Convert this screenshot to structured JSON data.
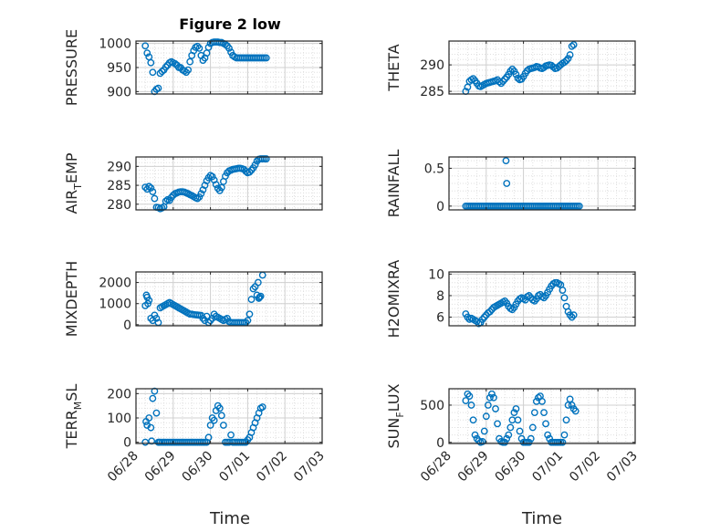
{
  "figure": {
    "title": "Figure 2 low"
  },
  "style": {
    "marker_color": "#0072bd",
    "axes_color": "#262626",
    "grid_color": "#dfdfdf"
  },
  "x_axis": {
    "label": "Time",
    "ticks": [
      "06/28",
      "06/29",
      "06/30",
      "07/01",
      "07/02",
      "07/03"
    ]
  },
  "chart_data": [
    {
      "type": "scatter",
      "title": "Figure 2 low",
      "ylabel_main": "PRESSURE",
      "ylabel_sub": "",
      "ylim": [
        895,
        1005
      ],
      "yticks": [
        900,
        950,
        1000
      ],
      "ytick_labels": [
        "900",
        "950",
        "1000"
      ],
      "grid": true,
      "minor_grid": true,
      "x": [
        0.25,
        0.3,
        0.35,
        0.4,
        0.45,
        0.5,
        0.55,
        0.6,
        0.65,
        0.7,
        0.75,
        0.8,
        0.85,
        0.9,
        0.95,
        1.0,
        1.05,
        1.1,
        1.15,
        1.2,
        1.25,
        1.3,
        1.35,
        1.4,
        1.45,
        1.5,
        1.55,
        1.6,
        1.65,
        1.7,
        1.75,
        1.8,
        1.85,
        1.9,
        1.95,
        2.0,
        2.05,
        2.1,
        2.15,
        2.2,
        2.25,
        2.3,
        2.35,
        2.4,
        2.45,
        2.5,
        2.55,
        2.6,
        2.65,
        2.7,
        2.75,
        2.8,
        2.85,
        2.9,
        2.95,
        3.0,
        3.05,
        3.1,
        3.15,
        3.2,
        3.25,
        3.3,
        3.35,
        3.4,
        3.45,
        3.5
      ],
      "y": [
        995,
        980,
        972,
        960,
        940,
        900,
        905,
        907,
        938,
        942,
        945,
        951,
        955,
        960,
        962,
        960,
        958,
        955,
        950,
        950,
        945,
        943,
        940,
        945,
        962,
        975,
        985,
        992,
        994,
        990,
        975,
        965,
        970,
        980,
        992,
        1000,
        1002,
        1003,
        1003,
        1003,
        1002,
        1002,
        1000,
        998,
        995,
        990,
        982,
        975,
        972,
        970,
        970,
        970,
        970,
        970,
        970,
        970,
        970,
        970,
        970,
        970,
        970,
        970,
        970,
        970,
        970,
        970
      ]
    },
    {
      "type": "scatter",
      "ylabel_main": "THETA",
      "ylabel_sub": "",
      "ylim": [
        284.5,
        294.5
      ],
      "yticks": [
        285,
        290
      ],
      "ytick_labels": [
        "285",
        "290"
      ],
      "grid": true,
      "minor_grid": true,
      "x": [
        0.45,
        0.5,
        0.55,
        0.6,
        0.65,
        0.7,
        0.75,
        0.8,
        0.85,
        0.9,
        0.95,
        1.0,
        1.05,
        1.1,
        1.15,
        1.2,
        1.25,
        1.3,
        1.35,
        1.4,
        1.45,
        1.5,
        1.55,
        1.6,
        1.65,
        1.7,
        1.75,
        1.8,
        1.85,
        1.9,
        1.95,
        2.0,
        2.05,
        2.1,
        2.15,
        2.2,
        2.25,
        2.3,
        2.35,
        2.4,
        2.45,
        2.5,
        2.55,
        2.6,
        2.65,
        2.7,
        2.75,
        2.8,
        2.85,
        2.9,
        2.95,
        3.0,
        3.05,
        3.1,
        3.15,
        3.2,
        3.25,
        3.3,
        3.35
      ],
      "y": [
        285.0,
        285.8,
        286.9,
        287.2,
        287.4,
        287.0,
        286.5,
        286.0,
        285.9,
        286.1,
        286.3,
        286.5,
        286.6,
        286.7,
        286.8,
        286.9,
        287.0,
        287.2,
        286.8,
        286.5,
        286.9,
        287.3,
        287.7,
        288.2,
        288.8,
        289.2,
        288.8,
        288.2,
        287.5,
        287.2,
        287.3,
        287.8,
        288.4,
        288.9,
        289.2,
        289.3,
        289.4,
        289.5,
        289.7,
        289.6,
        289.4,
        289.3,
        289.5,
        289.8,
        289.9,
        290.0,
        289.9,
        289.6,
        289.3,
        289.4,
        289.7,
        290.0,
        290.3,
        290.5,
        290.8,
        291.2,
        291.9,
        293.5,
        293.8
      ]
    },
    {
      "type": "scatter",
      "ylabel_main": "AIR",
      "ylabel_sub": "T",
      "ylabel_tail": "EMP",
      "ylim": [
        278.5,
        292.5
      ],
      "yticks": [
        280,
        285,
        290
      ],
      "ytick_labels": [
        "280",
        "285",
        "290"
      ],
      "grid": true,
      "minor_grid": true,
      "x": [
        0.25,
        0.3,
        0.35,
        0.4,
        0.45,
        0.5,
        0.55,
        0.6,
        0.65,
        0.7,
        0.75,
        0.8,
        0.85,
        0.9,
        0.95,
        1.0,
        1.05,
        1.1,
        1.15,
        1.2,
        1.25,
        1.3,
        1.35,
        1.4,
        1.45,
        1.5,
        1.55,
        1.6,
        1.65,
        1.7,
        1.75,
        1.8,
        1.85,
        1.9,
        1.95,
        2.0,
        2.05,
        2.1,
        2.15,
        2.2,
        2.25,
        2.3,
        2.35,
        2.4,
        2.45,
        2.5,
        2.55,
        2.6,
        2.65,
        2.7,
        2.75,
        2.8,
        2.85,
        2.9,
        2.95,
        3.0,
        3.05,
        3.1,
        3.15,
        3.2,
        3.25,
        3.3,
        3.35,
        3.4,
        3.45,
        3.5
      ],
      "y": [
        284.5,
        284.0,
        284.7,
        284.3,
        283.3,
        281.5,
        279.2,
        279.1,
        278.8,
        279.0,
        279.3,
        280.8,
        281.2,
        281.0,
        281.8,
        282.4,
        282.8,
        283.0,
        283.2,
        283.3,
        283.3,
        283.2,
        283.0,
        282.8,
        282.5,
        282.3,
        282.0,
        281.7,
        281.5,
        281.9,
        282.8,
        283.8,
        285.0,
        286.2,
        287.0,
        287.6,
        287.3,
        286.4,
        285.2,
        284.2,
        283.6,
        284.4,
        286.0,
        287.4,
        288.3,
        288.8,
        289.0,
        289.2,
        289.3,
        289.4,
        289.5,
        289.5,
        289.4,
        289.2,
        288.7,
        288.3,
        288.5,
        289.0,
        289.6,
        290.4,
        291.4,
        291.9,
        292.0,
        292.0,
        292.0,
        292.0
      ]
    },
    {
      "type": "scatter",
      "ylabel_main": "RAINFALL",
      "ylabel_sub": "",
      "ylim": [
        -0.05,
        0.65
      ],
      "yticks": [
        0,
        0.5
      ],
      "ytick_labels": [
        "0",
        "0.5"
      ],
      "grid": true,
      "minor_grid": true,
      "x": [
        0.45,
        0.5,
        0.55,
        0.6,
        0.65,
        0.7,
        0.75,
        0.8,
        0.85,
        0.9,
        0.95,
        1.0,
        1.05,
        1.1,
        1.15,
        1.2,
        1.25,
        1.3,
        1.35,
        1.4,
        1.45,
        1.5,
        1.55,
        1.6,
        1.65,
        1.7,
        1.75,
        1.8,
        1.85,
        1.9,
        1.95,
        2.0,
        2.05,
        2.1,
        2.15,
        2.2,
        2.25,
        2.3,
        2.35,
        2.4,
        2.45,
        2.5,
        2.55,
        2.6,
        2.65,
        2.7,
        2.75,
        2.8,
        2.85,
        2.9,
        2.95,
        3.0,
        3.05,
        3.1,
        3.15,
        3.2,
        3.25,
        3.3,
        3.35,
        3.4,
        3.45,
        3.5,
        1.53,
        1.55
      ],
      "y": [
        0,
        0,
        0,
        0,
        0,
        0,
        0,
        0,
        0,
        0,
        0,
        0,
        0,
        0,
        0,
        0,
        0,
        0,
        0,
        0,
        0,
        0,
        0,
        0,
        0,
        0,
        0,
        0,
        0,
        0,
        0,
        0,
        0,
        0,
        0,
        0,
        0,
        0,
        0,
        0,
        0,
        0,
        0,
        0,
        0,
        0,
        0,
        0,
        0,
        0,
        0,
        0,
        0,
        0,
        0,
        0,
        0,
        0,
        0,
        0,
        0,
        0,
        0.6,
        0.3
      ]
    },
    {
      "type": "scatter",
      "ylabel_main": "MIXDEPTH",
      "ylabel_sub": "",
      "ylim": [
        -50,
        2500
      ],
      "yticks": [
        0,
        1000,
        2000
      ],
      "ytick_labels": [
        "0",
        "1000",
        "2000"
      ],
      "grid": true,
      "minor_grid": true,
      "x": [
        0.25,
        0.3,
        0.35,
        0.4,
        0.45,
        0.5,
        0.55,
        0.6,
        0.65,
        0.7,
        0.75,
        0.8,
        0.85,
        0.9,
        0.95,
        1.0,
        1.05,
        1.1,
        1.15,
        1.2,
        1.25,
        1.3,
        1.35,
        1.4,
        1.45,
        1.5,
        1.55,
        1.6,
        1.65,
        1.7,
        1.75,
        1.8,
        1.85,
        1.9,
        1.95,
        2.0,
        2.05,
        2.1,
        2.15,
        2.2,
        2.25,
        2.3,
        2.35,
        2.4,
        2.45,
        2.5,
        2.55,
        2.6,
        2.65,
        2.7,
        2.75,
        2.8,
        2.85,
        2.9,
        2.95,
        3.0,
        3.05,
        3.1,
        3.15,
        3.2,
        3.25,
        3.3,
        3.35,
        3.4,
        0.28,
        0.32,
        3.28,
        3.32
      ],
      "y": [
        900,
        1300,
        1150,
        300,
        200,
        450,
        300,
        100,
        800,
        850,
        900,
        950,
        1000,
        1050,
        1000,
        950,
        900,
        850,
        800,
        750,
        700,
        650,
        600,
        550,
        500,
        500,
        480,
        470,
        460,
        450,
        440,
        300,
        200,
        400,
        100,
        200,
        300,
        500,
        400,
        350,
        300,
        250,
        200,
        250,
        300,
        150,
        100,
        100,
        100,
        100,
        100,
        100,
        100,
        100,
        100,
        200,
        500,
        1200,
        1700,
        1800,
        1400,
        1250,
        1350,
        2350,
        1400,
        1000,
        2000,
        1300
      ]
    },
    {
      "type": "scatter",
      "ylabel_main": "H2OMIXRA",
      "ylabel_sub": "",
      "ylim": [
        5.2,
        10.2
      ],
      "yticks": [
        6,
        8,
        10
      ],
      "ytick_labels": [
        "6",
        "8",
        "10"
      ],
      "grid": true,
      "minor_grid": true,
      "x": [
        0.45,
        0.5,
        0.55,
        0.6,
        0.65,
        0.7,
        0.75,
        0.8,
        0.85,
        0.9,
        0.95,
        1.0,
        1.05,
        1.1,
        1.15,
        1.2,
        1.25,
        1.3,
        1.35,
        1.4,
        1.45,
        1.5,
        1.55,
        1.6,
        1.65,
        1.7,
        1.75,
        1.8,
        1.85,
        1.9,
        1.95,
        2.0,
        2.05,
        2.1,
        2.15,
        2.2,
        2.25,
        2.3,
        2.35,
        2.4,
        2.45,
        2.5,
        2.55,
        2.6,
        2.65,
        2.7,
        2.75,
        2.8,
        2.85,
        2.9,
        2.95,
        3.0,
        3.05,
        3.1,
        3.15,
        3.2,
        3.25,
        3.3,
        3.35
      ],
      "y": [
        6.3,
        6.0,
        5.8,
        5.9,
        5.8,
        5.7,
        5.6,
        5.4,
        5.5,
        5.8,
        6.0,
        6.2,
        6.4,
        6.5,
        6.7,
        6.9,
        7.0,
        7.1,
        7.2,
        7.3,
        7.4,
        7.5,
        7.3,
        7.0,
        6.8,
        6.7,
        6.9,
        7.2,
        7.5,
        7.7,
        7.8,
        7.7,
        7.6,
        7.9,
        8.0,
        7.8,
        7.6,
        7.5,
        7.7,
        8.0,
        8.1,
        7.9,
        7.8,
        8.0,
        8.3,
        8.6,
        8.9,
        9.1,
        9.2,
        9.2,
        9.1,
        9.0,
        8.5,
        7.8,
        7.0,
        6.5,
        6.2,
        6.0,
        6.2
      ]
    },
    {
      "type": "scatter",
      "ylabel_main": "TERR",
      "ylabel_sub": "M",
      "ylabel_tail": "SL",
      "ylim": [
        -5,
        220
      ],
      "yticks": [
        0,
        100,
        200
      ],
      "ytick_labels": [
        "0",
        "100",
        "200"
      ],
      "grid": true,
      "minor_grid": true,
      "x": [
        0.25,
        0.3,
        0.35,
        0.4,
        0.45,
        0.5,
        0.55,
        0.6,
        0.62,
        0.42,
        0.27,
        0.65,
        0.7,
        0.75,
        0.8,
        0.85,
        0.9,
        0.95,
        1.0,
        1.05,
        1.1,
        1.15,
        1.2,
        1.25,
        1.3,
        1.35,
        1.4,
        1.45,
        1.5,
        1.55,
        1.6,
        1.65,
        1.7,
        1.75,
        1.8,
        1.85,
        1.9,
        1.95,
        2.0,
        2.05,
        2.1,
        2.15,
        2.2,
        2.25,
        2.3,
        2.35,
        2.4,
        2.45,
        2.5,
        2.55,
        2.6,
        2.65,
        2.7,
        2.75,
        2.8,
        2.85,
        2.9,
        2.95,
        3.0,
        3.05,
        3.1,
        3.15,
        3.2,
        3.25,
        3.3,
        3.35,
        3.4
      ],
      "y": [
        0,
        70,
        100,
        60,
        180,
        210,
        120,
        0,
        0,
        5,
        85,
        0,
        0,
        0,
        0,
        0,
        0,
        0,
        0,
        0,
        0,
        0,
        0,
        0,
        0,
        0,
        0,
        0,
        0,
        0,
        0,
        0,
        0,
        0,
        0,
        0,
        0,
        20,
        70,
        100,
        90,
        130,
        150,
        140,
        110,
        70,
        0,
        0,
        0,
        30,
        0,
        0,
        0,
        0,
        0,
        0,
        0,
        0,
        10,
        20,
        40,
        60,
        80,
        100,
        120,
        140,
        145
      ]
    },
    {
      "type": "scatter",
      "ylabel_main": "SUN",
      "ylabel_sub": "F",
      "ylabel_tail": "LUX",
      "ylim": [
        -15,
        720
      ],
      "yticks": [
        0,
        500
      ],
      "ytick_labels": [
        "0",
        "500"
      ],
      "grid": true,
      "minor_grid": true,
      "x": [
        0.45,
        0.5,
        0.55,
        0.6,
        0.65,
        0.7,
        0.75,
        0.8,
        0.85,
        0.9,
        0.95,
        1.0,
        1.05,
        1.1,
        1.15,
        1.2,
        1.25,
        1.3,
        1.35,
        1.4,
        1.45,
        1.5,
        1.55,
        1.6,
        1.65,
        1.7,
        1.75,
        1.8,
        1.85,
        1.9,
        1.95,
        2.0,
        2.05,
        2.1,
        2.15,
        2.2,
        2.25,
        2.3,
        2.35,
        2.4,
        2.45,
        2.5,
        2.55,
        2.6,
        2.65,
        2.7,
        2.75,
        2.8,
        2.85,
        2.9,
        2.95,
        3.0,
        3.05,
        3.1,
        3.15,
        3.2,
        3.25,
        3.3,
        3.35,
        3.4
      ],
      "y": [
        560,
        650,
        620,
        500,
        300,
        100,
        50,
        20,
        0,
        10,
        150,
        350,
        500,
        600,
        650,
        600,
        450,
        250,
        50,
        10,
        0,
        0,
        50,
        100,
        200,
        300,
        400,
        450,
        300,
        150,
        50,
        0,
        0,
        0,
        0,
        50,
        200,
        400,
        550,
        600,
        620,
        550,
        400,
        250,
        100,
        50,
        0,
        0,
        0,
        0,
        0,
        0,
        0,
        100,
        300,
        500,
        580,
        500,
        450,
        420
      ]
    }
  ]
}
